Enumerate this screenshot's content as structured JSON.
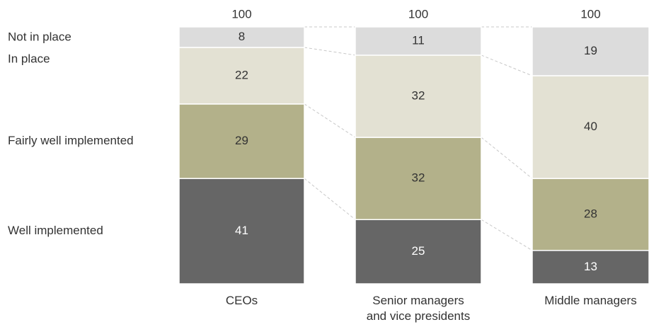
{
  "chart_data": {
    "type": "stacked-bar",
    "categories": [
      "CEOs",
      "Senior managers\nand vice presidents",
      "Middle managers"
    ],
    "totals": [
      100,
      100,
      100
    ],
    "ylim": [
      0,
      100
    ],
    "series": [
      {
        "name": "Well implemented",
        "color": "#666666",
        "values": [
          41,
          25,
          13
        ]
      },
      {
        "name": "Fairly well implemented",
        "color": "#b3b18a",
        "values": [
          29,
          32,
          28
        ]
      },
      {
        "name": "In place",
        "color": "#e3e1d3",
        "values": [
          22,
          32,
          40
        ]
      },
      {
        "name": "Not in place",
        "color": "#dcdcdc",
        "values": [
          8,
          11,
          19
        ]
      }
    ]
  }
}
